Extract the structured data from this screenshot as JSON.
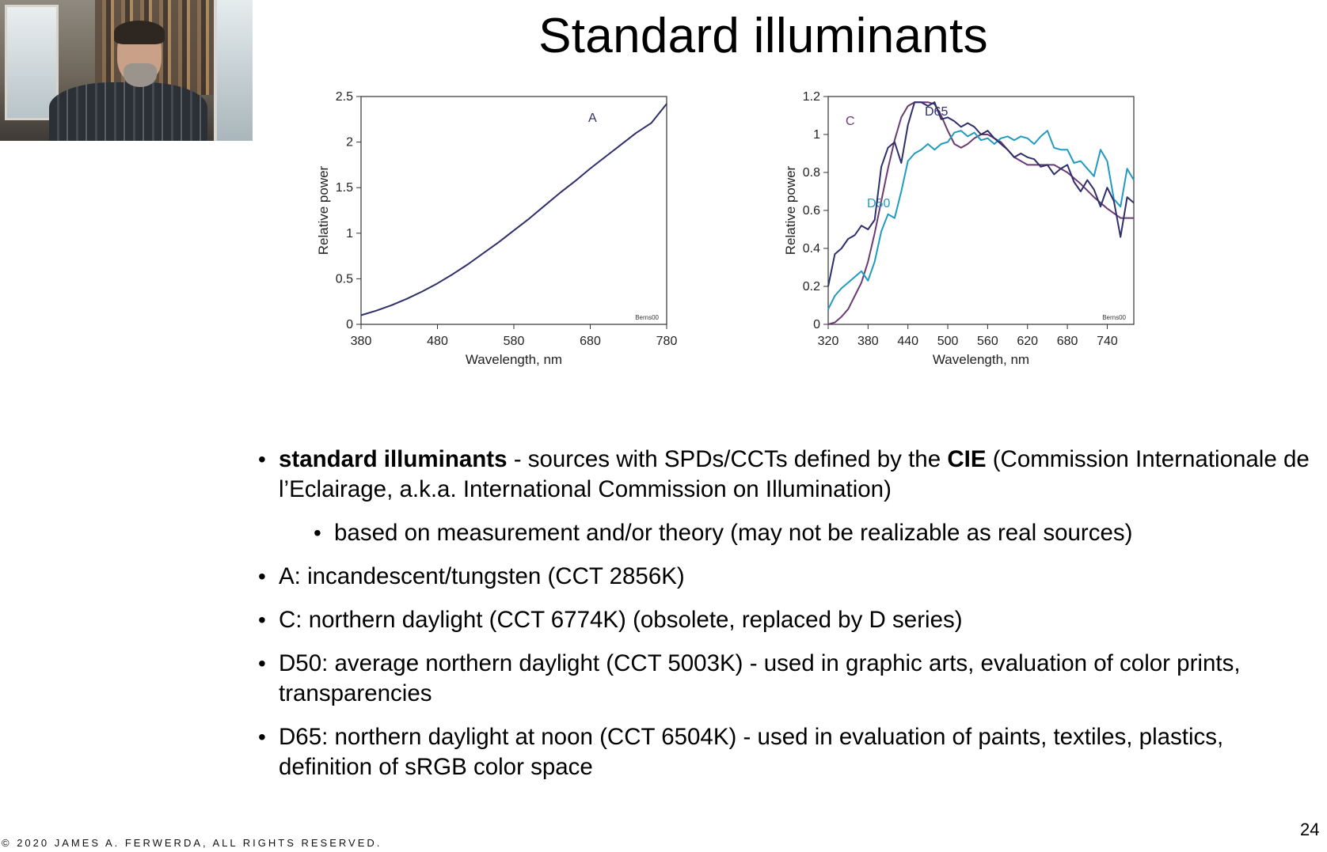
{
  "slide": {
    "title": "Standard illuminants",
    "page_number": "24",
    "copyright": "© 2020 JAMES A. FERWERDA,  ALL RIGHTS RESERVED."
  },
  "webcam": {
    "label": "presenter video"
  },
  "bullets": [
    {
      "level": 1,
      "bold_lead": "standard illuminants",
      "text_a": " - sources with SPDs/CCTs defined by the ",
      "bold_mid": "CIE",
      "text_b": " (Commission Internationale de l’Eclairage, a.k.a. International Commission on Illumination)"
    },
    {
      "level": 2,
      "text": "based on measurement and/or theory (may not be realizable as real sources)"
    },
    {
      "level": 1,
      "text": "A: incandescent/tungsten (CCT 2856K)"
    },
    {
      "level": 1,
      "text": "C: northern daylight (CCT 6774K) (obsolete, replaced by D series)"
    },
    {
      "level": 1,
      "text": "D50: average northern daylight (CCT 5003K) - used in graphic arts, evaluation of  color prints, transparencies"
    },
    {
      "level": 1,
      "text": "D65: northern daylight at noon (CCT 6504K) - used in evaluation of paints, textiles, plastics, definition of sRGB color space"
    }
  ],
  "chart_data": [
    {
      "type": "line",
      "xlabel": "Wavelength, nm",
      "ylabel": "Relative power",
      "xlim": [
        380,
        780
      ],
      "ylim": [
        0,
        2.5
      ],
      "xticks": [
        380,
        480,
        580,
        680,
        780
      ],
      "yticks": [
        0,
        0.5,
        1,
        1.5,
        2,
        2.5
      ],
      "yticklabels": [
        "0",
        "0.5",
        "1",
        "1.5",
        "2",
        "2.5"
      ],
      "credit": "Berns00",
      "series": [
        {
          "name": "A",
          "color": "#2e2f6b",
          "x": [
            380,
            400,
            420,
            440,
            460,
            480,
            500,
            520,
            540,
            560,
            580,
            600,
            620,
            640,
            660,
            680,
            700,
            720,
            740,
            760,
            780
          ],
          "y": [
            0.1,
            0.15,
            0.21,
            0.28,
            0.36,
            0.45,
            0.55,
            0.66,
            0.78,
            0.9,
            1.03,
            1.16,
            1.3,
            1.44,
            1.57,
            1.71,
            1.84,
            1.97,
            2.1,
            2.21,
            2.42
          ]
        }
      ]
    },
    {
      "type": "line",
      "xlabel": "Wavelength, nm",
      "ylabel": "Relative power",
      "xlim": [
        320,
        780
      ],
      "ylim": [
        0,
        1.2
      ],
      "xticks": [
        320,
        380,
        440,
        500,
        560,
        620,
        680,
        740
      ],
      "yticks": [
        0,
        0.2,
        0.4,
        0.6,
        0.8,
        1.0,
        1.2
      ],
      "yticklabels": [
        "0",
        "0.2",
        "0.4",
        "0.6",
        "0.8",
        "1",
        "1.2"
      ],
      "credit": "Berns00",
      "series": [
        {
          "name": "C",
          "color": "#6b3a73",
          "x": [
            320,
            330,
            340,
            350,
            360,
            370,
            380,
            390,
            400,
            410,
            420,
            430,
            440,
            450,
            460,
            470,
            480,
            490,
            500,
            510,
            520,
            530,
            540,
            550,
            560,
            570,
            580,
            600,
            620,
            640,
            660,
            680,
            700,
            720,
            740,
            760,
            780
          ],
          "y": [
            0.0,
            0.01,
            0.04,
            0.08,
            0.15,
            0.22,
            0.33,
            0.48,
            0.65,
            0.82,
            0.97,
            1.09,
            1.15,
            1.17,
            1.17,
            1.17,
            1.16,
            1.1,
            1.02,
            0.95,
            0.93,
            0.95,
            0.98,
            1.0,
            1.0,
            0.98,
            0.96,
            0.88,
            0.84,
            0.84,
            0.84,
            0.8,
            0.74,
            0.67,
            0.61,
            0.56,
            0.56
          ]
        },
        {
          "name": "D50",
          "color": "#1f9bbf",
          "x": [
            320,
            330,
            340,
            350,
            360,
            370,
            380,
            390,
            400,
            410,
            420,
            430,
            440,
            450,
            460,
            470,
            480,
            490,
            500,
            510,
            520,
            530,
            540,
            550,
            560,
            570,
            580,
            590,
            600,
            610,
            620,
            630,
            640,
            650,
            660,
            670,
            680,
            690,
            700,
            710,
            720,
            730,
            740,
            750,
            760,
            770,
            780
          ],
          "y": [
            0.08,
            0.15,
            0.19,
            0.22,
            0.25,
            0.28,
            0.23,
            0.33,
            0.49,
            0.58,
            0.56,
            0.7,
            0.86,
            0.9,
            0.92,
            0.95,
            0.92,
            0.95,
            0.96,
            1.01,
            1.02,
            0.99,
            1.01,
            0.97,
            0.98,
            0.95,
            0.98,
            0.99,
            0.97,
            0.99,
            0.98,
            0.95,
            0.99,
            1.02,
            0.93,
            0.92,
            0.92,
            0.85,
            0.86,
            0.82,
            0.78,
            0.92,
            0.86,
            0.66,
            0.62,
            0.82,
            0.76
          ]
        },
        {
          "name": "D65",
          "color": "#2e2f6b",
          "x": [
            320,
            330,
            340,
            350,
            360,
            370,
            380,
            390,
            400,
            410,
            420,
            430,
            440,
            450,
            460,
            470,
            480,
            490,
            500,
            510,
            520,
            530,
            540,
            550,
            560,
            570,
            580,
            590,
            600,
            610,
            620,
            630,
            640,
            650,
            660,
            670,
            680,
            690,
            700,
            710,
            720,
            730,
            740,
            750,
            760,
            770,
            780
          ],
          "y": [
            0.2,
            0.37,
            0.4,
            0.45,
            0.47,
            0.52,
            0.5,
            0.55,
            0.83,
            0.93,
            0.96,
            0.85,
            1.05,
            1.17,
            1.17,
            1.15,
            1.17,
            1.08,
            1.09,
            1.07,
            1.04,
            1.06,
            1.04,
            1.0,
            1.02,
            0.98,
            0.95,
            0.92,
            0.88,
            0.9,
            0.88,
            0.87,
            0.83,
            0.84,
            0.79,
            0.82,
            0.84,
            0.75,
            0.7,
            0.76,
            0.71,
            0.62,
            0.72,
            0.65,
            0.46,
            0.67,
            0.64
          ]
        }
      ]
    }
  ]
}
